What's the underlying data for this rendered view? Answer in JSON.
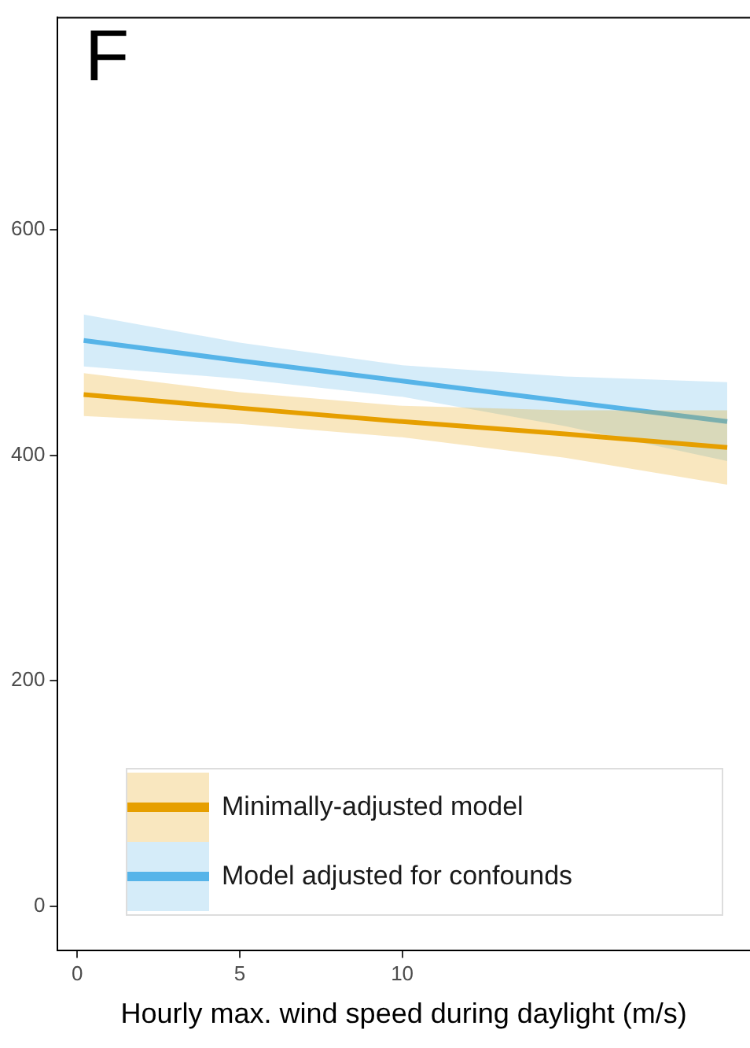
{
  "chart_data": {
    "type": "line",
    "annotations": [
      "F"
    ],
    "xlabel": "Hourly max. wind speed during daylight (m/s)",
    "x": [
      0.2,
      5,
      10,
      15,
      20
    ],
    "series": [
      {
        "name": "Minimally-adjusted model",
        "color": "#e69f00",
        "values": [
          454,
          442,
          430,
          419,
          407
        ],
        "lower": [
          435,
          428,
          416,
          398,
          374
        ],
        "upper": [
          473,
          456,
          444,
          440,
          440
        ]
      },
      {
        "name": "Model adjusted for confounds",
        "color": "#56b4e9",
        "values": [
          502,
          484,
          466,
          448,
          430
        ],
        "lower": [
          479,
          468,
          452,
          426,
          395
        ],
        "upper": [
          525,
          500,
          480,
          470,
          465
        ]
      }
    ],
    "xlim": [
      -0.6,
      20.7
    ],
    "xticks": [
      0,
      5,
      10
    ],
    "ylim": [
      -39,
      789
    ],
    "yticks": [
      0,
      200,
      400,
      600
    ],
    "grid": false,
    "legend": "bottom left",
    "marker": "none",
    "line_style": "solid"
  }
}
